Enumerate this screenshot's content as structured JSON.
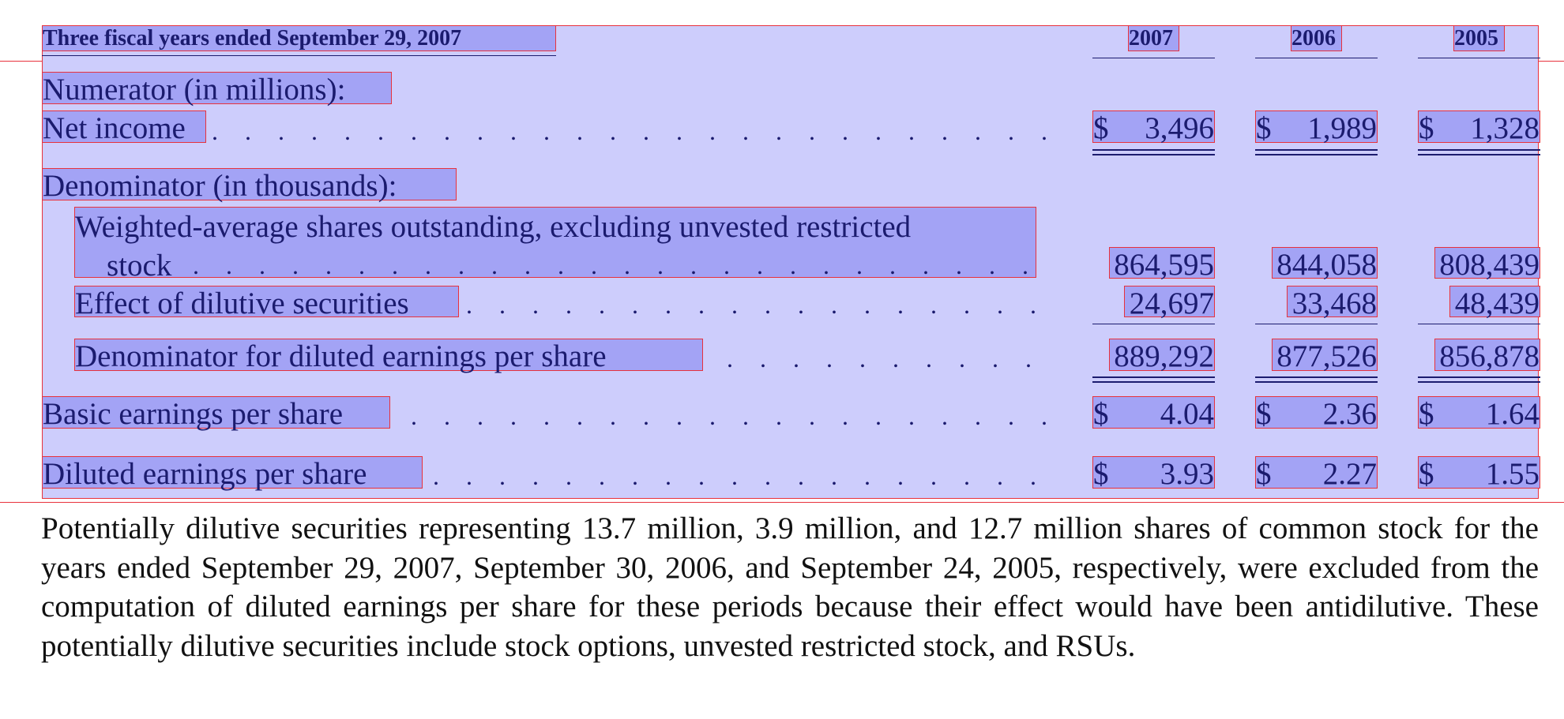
{
  "table": {
    "header": {
      "title": "Three fiscal years ended September 29, 2007",
      "years": [
        "2007",
        "2006",
        "2005"
      ]
    },
    "numerator_heading": "Numerator (in millions):",
    "net_income": {
      "label": "Net income",
      "currency": "$",
      "values": [
        "3,496",
        "1,989",
        "1,328"
      ]
    },
    "denominator_heading": "Denominator (in thousands):",
    "weighted_average": {
      "label_line1": "Weighted-average shares outstanding, excluding unvested restricted",
      "label_line2": "stock",
      "values": [
        "864,595",
        "844,058",
        "808,439"
      ]
    },
    "dilutive_effect": {
      "label": "Effect of dilutive securities",
      "values": [
        "24,697",
        "33,468",
        "48,439"
      ]
    },
    "diluted_denominator": {
      "label": "Denominator for diluted earnings per share",
      "values": [
        "889,292",
        "877,526",
        "856,878"
      ]
    },
    "basic_eps": {
      "label": "Basic earnings per share",
      "currency": "$",
      "values": [
        "4.04",
        "2.36",
        "1.64"
      ]
    },
    "diluted_eps": {
      "label": "Diluted earnings per share",
      "currency": "$",
      "values": [
        "3.93",
        "2.27",
        "1.55"
      ]
    }
  },
  "footnote": "Potentially dilutive securities representing 13.7 million, 3.9 million, and 12.7 million shares of common stock for the years ended September 29, 2007, September 30, 2006, and September 24, 2005, respectively, were excluded from the computation of diluted earnings per share for these periods because their effect would have been antidilutive. These potentially dilutive securities include stock options, unvested restricted stock, and RSUs."
}
